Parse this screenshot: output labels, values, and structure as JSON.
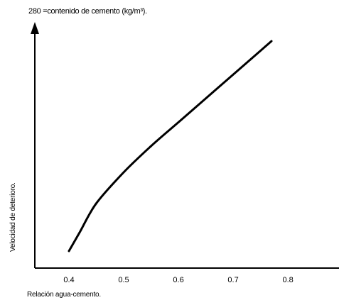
{
  "chart_data": {
    "type": "line",
    "title": "280 =contenido de cemento (kg/m³).",
    "xlabel": "Relación agua-cemento.",
    "ylabel": "Velocidad de deterioro.",
    "xlim": [
      0.3,
      0.8
    ],
    "xticks": [
      "0.4",
      "0.5",
      "0.6",
      "0.7",
      "0.8"
    ],
    "yticks": [],
    "grid": false,
    "series": [
      {
        "color": "#000000",
        "x": [
          0.4,
          0.42,
          0.45,
          0.5,
          0.55,
          0.6,
          0.65,
          0.7,
          0.75,
          0.77
        ],
        "y": [
          0.02,
          0.1,
          0.22,
          0.35,
          0.46,
          0.56,
          0.66,
          0.76,
          0.86,
          0.9
        ]
      }
    ]
  }
}
